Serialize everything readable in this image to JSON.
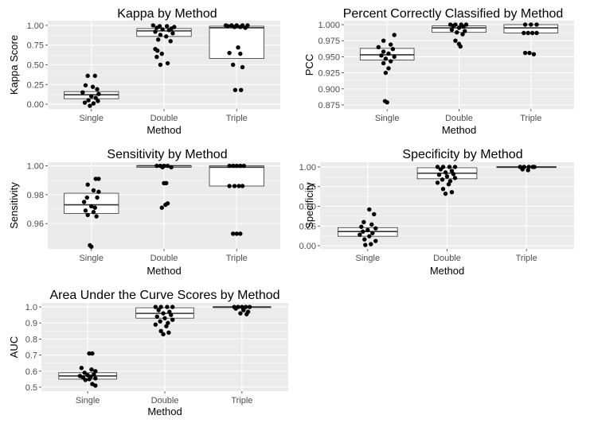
{
  "figure": {
    "background": "#ffffff",
    "panel_background": "#ebebeb",
    "grid_color": "#ffffff",
    "box_fill": "#ffffff",
    "box_stroke": "#333333",
    "point_color": "#000000"
  },
  "chart_data": [
    {
      "type": "box",
      "title": "Kappa by Method",
      "xlabel": "Method",
      "ylabel": "Kappa Score",
      "categories": [
        "Single",
        "Double",
        "Triple"
      ],
      "ylim": [
        -0.06,
        1.06
      ],
      "yticks": [
        0.0,
        0.25,
        0.5,
        0.75,
        1.0
      ],
      "ytick_labels": [
        "0.00",
        "0.25",
        "0.50",
        "0.75",
        "1.00"
      ],
      "grid": true,
      "boxes": [
        {
          "category": "Single",
          "q1": 0.07,
          "median": 0.12,
          "q3": 0.16
        },
        {
          "category": "Double",
          "q1": 0.86,
          "median": 0.93,
          "q3": 0.96
        },
        {
          "category": "Triple",
          "q1": 0.58,
          "median": 0.97,
          "q3": 0.99
        }
      ],
      "points": [
        [
          -0.05,
          0.36
        ],
        [
          0.05,
          0.36
        ],
        [
          -0.08,
          0.24
        ],
        [
          0.02,
          0.22
        ],
        [
          0.08,
          0.19
        ],
        [
          -0.12,
          0.15
        ],
        [
          0.1,
          0.13
        ],
        [
          0.0,
          0.1
        ],
        [
          0.06,
          0.08
        ],
        [
          -0.04,
          0.05
        ],
        [
          0.09,
          0.04
        ],
        [
          -0.09,
          0.02
        ],
        [
          0.03,
          0.01
        ],
        [
          -0.02,
          -0.02
        ],
        [
          -0.15,
          1.0
        ],
        [
          -0.06,
          0.99
        ],
        [
          0.04,
          0.99
        ],
        [
          0.14,
          0.98
        ],
        [
          -0.1,
          0.97
        ],
        [
          0.1,
          0.96
        ],
        [
          -0.02,
          0.95
        ],
        [
          0.07,
          0.94
        ],
        [
          -0.12,
          0.92
        ],
        [
          0.12,
          0.9
        ],
        [
          -0.05,
          0.88
        ],
        [
          0.03,
          0.86
        ],
        [
          -0.08,
          0.82
        ],
        [
          0.09,
          0.8
        ],
        [
          -0.12,
          0.7
        ],
        [
          -0.09,
          0.68
        ],
        [
          -0.03,
          0.64
        ],
        [
          -0.1,
          0.6
        ],
        [
          0.05,
          0.52
        ],
        [
          -0.05,
          0.5
        ],
        [
          -0.15,
          1.0
        ],
        [
          -0.07,
          1.0
        ],
        [
          0.0,
          1.0
        ],
        [
          0.08,
          1.0
        ],
        [
          0.15,
          1.0
        ],
        [
          -0.12,
          0.99
        ],
        [
          -0.03,
          0.98
        ],
        [
          0.05,
          0.98
        ],
        [
          0.12,
          0.97
        ],
        [
          0.02,
          0.72
        ],
        [
          -0.1,
          0.65
        ],
        [
          0.05,
          0.64
        ],
        [
          -0.05,
          0.5
        ],
        [
          0.08,
          0.47
        ],
        [
          -0.02,
          0.18
        ],
        [
          0.06,
          0.18
        ]
      ]
    },
    {
      "type": "box",
      "title": "Percent Correctly Classified by Method",
      "xlabel": "Method",
      "ylabel": "PCC",
      "categories": [
        "Single",
        "Double",
        "Triple"
      ],
      "ylim": [
        0.8688,
        1.0062
      ],
      "yticks": [
        0.875,
        0.9,
        0.925,
        0.95,
        0.975,
        1.0
      ],
      "ytick_labels": [
        "0.875",
        "0.900",
        "0.925",
        "0.950",
        "0.975",
        "1.000"
      ],
      "grid": true,
      "boxes": [
        {
          "category": "Single",
          "q1": 0.945,
          "median": 0.953,
          "q3": 0.963
        },
        {
          "category": "Double",
          "q1": 0.988,
          "median": 0.995,
          "q3": 0.998
        },
        {
          "category": "Triple",
          "q1": 0.987,
          "median": 0.995,
          "q3": 1.0
        }
      ],
      "points": [
        [
          0.1,
          0.984
        ],
        [
          -0.05,
          0.975
        ],
        [
          0.05,
          0.969
        ],
        [
          -0.12,
          0.965
        ],
        [
          0.08,
          0.962
        ],
        [
          -0.05,
          0.958
        ],
        [
          0.02,
          0.955
        ],
        [
          -0.08,
          0.952
        ],
        [
          0.1,
          0.95
        ],
        [
          -0.02,
          0.947
        ],
        [
          0.05,
          0.943
        ],
        [
          -0.05,
          0.94
        ],
        [
          0.02,
          0.932
        ],
        [
          -0.02,
          0.925
        ],
        [
          -0.03,
          0.881
        ],
        [
          0.0,
          0.879
        ],
        [
          -0.12,
          1.0
        ],
        [
          -0.05,
          1.0
        ],
        [
          0.03,
          1.0
        ],
        [
          0.1,
          1.0
        ],
        [
          -0.08,
          0.998
        ],
        [
          0.06,
          0.997
        ],
        [
          0.0,
          0.995
        ],
        [
          -0.1,
          0.992
        ],
        [
          0.08,
          0.99
        ],
        [
          -0.03,
          0.988
        ],
        [
          0.05,
          0.985
        ],
        [
          -0.05,
          0.975
        ],
        [
          0.0,
          0.97
        ],
        [
          0.02,
          0.966
        ],
        [
          -0.08,
          1.0
        ],
        [
          0.0,
          1.0
        ],
        [
          0.08,
          1.0
        ],
        [
          -0.1,
          0.987
        ],
        [
          -0.04,
          0.987
        ],
        [
          0.02,
          0.987
        ],
        [
          0.08,
          0.987
        ],
        [
          -0.08,
          0.956
        ],
        [
          -0.02,
          0.956
        ],
        [
          0.04,
          0.954
        ]
      ]
    },
    {
      "type": "box",
      "title": "Sensitivity by Method",
      "xlabel": "Method",
      "ylabel": "Sensitivity",
      "categories": [
        "Single",
        "Double",
        "Triple"
      ],
      "ylim": [
        0.9425,
        1.0025
      ],
      "yticks": [
        0.96,
        0.98,
        1.0
      ],
      "ytick_labels": [
        "0.96",
        "0.98",
        "1.00"
      ],
      "grid": true,
      "boxes": [
        {
          "category": "Single",
          "q1": 0.967,
          "median": 0.973,
          "q3": 0.981
        },
        {
          "category": "Double",
          "q1": 0.999,
          "median": 1.0,
          "q3": 1.0
        },
        {
          "category": "Triple",
          "q1": 0.986,
          "median": 0.999,
          "q3": 1.0
        }
      ],
      "points": [
        [
          0.06,
          0.991
        ],
        [
          0.1,
          0.991
        ],
        [
          -0.05,
          0.987
        ],
        [
          0.03,
          0.983
        ],
        [
          0.1,
          0.982
        ],
        [
          0.08,
          0.978
        ],
        [
          -0.06,
          0.978
        ],
        [
          -0.1,
          0.975
        ],
        [
          0.0,
          0.972
        ],
        [
          0.05,
          0.971
        ],
        [
          -0.08,
          0.969
        ],
        [
          0.03,
          0.968
        ],
        [
          -0.05,
          0.966
        ],
        [
          0.07,
          0.965
        ],
        [
          -0.02,
          0.945
        ],
        [
          0.0,
          0.944
        ],
        [
          -0.1,
          1.0
        ],
        [
          -0.05,
          1.0
        ],
        [
          0.0,
          1.0
        ],
        [
          0.05,
          1.0
        ],
        [
          0.1,
          0.999
        ],
        [
          -0.02,
          0.999
        ],
        [
          0.03,
          0.988
        ],
        [
          0.0,
          0.988
        ],
        [
          0.05,
          0.974
        ],
        [
          0.02,
          0.973
        ],
        [
          -0.03,
          0.971
        ],
        [
          -0.1,
          1.0
        ],
        [
          -0.05,
          1.0
        ],
        [
          0.0,
          1.0
        ],
        [
          0.05,
          1.0
        ],
        [
          0.1,
          1.0
        ],
        [
          -0.1,
          0.986
        ],
        [
          -0.03,
          0.986
        ],
        [
          0.03,
          0.986
        ],
        [
          0.08,
          0.986
        ],
        [
          -0.05,
          0.953
        ],
        [
          0.0,
          0.953
        ],
        [
          0.05,
          0.953
        ]
      ]
    },
    {
      "type": "box",
      "title": "Specificity by Method",
      "xlabel": "Method",
      "ylabel": "Specificity",
      "categories": [
        "Single",
        "Double",
        "Triple"
      ],
      "ylim": [
        -0.04,
        1.06
      ],
      "yticks": [
        0.0,
        0.25,
        0.5,
        0.75,
        1.0
      ],
      "ytick_labels": [
        "0.00",
        "0.25",
        "0.50",
        "0.75",
        "1.00"
      ],
      "grid": true,
      "boxes": [
        {
          "category": "Single",
          "q1": 0.12,
          "median": 0.18,
          "q3": 0.23
        },
        {
          "category": "Double",
          "q1": 0.85,
          "median": 0.92,
          "q3": 0.99
        },
        {
          "category": "Triple",
          "q1": 1.0,
          "median": 1.0,
          "q3": 1.0
        }
      ],
      "points": [
        [
          0.02,
          0.46
        ],
        [
          0.08,
          0.4
        ],
        [
          -0.05,
          0.3
        ],
        [
          0.05,
          0.27
        ],
        [
          -0.08,
          0.24
        ],
        [
          0.1,
          0.22
        ],
        [
          0.0,
          0.2
        ],
        [
          -0.06,
          0.18
        ],
        [
          0.06,
          0.16
        ],
        [
          -0.1,
          0.14
        ],
        [
          0.02,
          0.12
        ],
        [
          -0.04,
          0.08
        ],
        [
          0.1,
          0.06
        ],
        [
          0.04,
          0.02
        ],
        [
          -0.03,
          0.01
        ],
        [
          -0.12,
          1.0
        ],
        [
          -0.05,
          1.0
        ],
        [
          0.03,
          1.0
        ],
        [
          0.1,
          1.0
        ],
        [
          -0.08,
          0.97
        ],
        [
          0.06,
          0.95
        ],
        [
          -0.02,
          0.93
        ],
        [
          0.08,
          0.91
        ],
        [
          -0.1,
          0.9
        ],
        [
          0.0,
          0.88
        ],
        [
          0.1,
          0.86
        ],
        [
          -0.06,
          0.84
        ],
        [
          0.04,
          0.82
        ],
        [
          -0.12,
          0.8
        ],
        [
          0.02,
          0.78
        ],
        [
          -0.05,
          0.72
        ],
        [
          0.06,
          0.68
        ],
        [
          -0.02,
          0.66
        ],
        [
          -0.08,
          1.0
        ],
        [
          -0.03,
          1.0
        ],
        [
          0.03,
          1.0
        ],
        [
          0.08,
          1.0
        ],
        [
          0.1,
          1.0
        ],
        [
          -0.05,
          0.97
        ],
        [
          0.02,
          0.96
        ]
      ]
    },
    {
      "type": "box",
      "title": "Area Under the Curve Scores by Method",
      "xlabel": "Method",
      "ylabel": "AUC",
      "categories": [
        "Single",
        "Double",
        "Triple"
      ],
      "ylim": [
        0.475,
        1.025
      ],
      "yticks": [
        0.5,
        0.6,
        0.7,
        0.8,
        0.9,
        1.0
      ],
      "ytick_labels": [
        "0.5",
        "0.6",
        "0.7",
        "0.8",
        "0.9",
        "1.0"
      ],
      "grid": true,
      "boxes": [
        {
          "category": "Single",
          "q1": 0.55,
          "median": 0.57,
          "q3": 0.59
        },
        {
          "category": "Double",
          "q1": 0.93,
          "median": 0.96,
          "q3": 0.995
        },
        {
          "category": "Triple",
          "q1": 0.996,
          "median": 1.0,
          "q3": 1.0
        }
      ],
      "points": [
        [
          0.02,
          0.71
        ],
        [
          0.06,
          0.71
        ],
        [
          -0.08,
          0.62
        ],
        [
          0.05,
          0.61
        ],
        [
          0.1,
          0.6
        ],
        [
          -0.04,
          0.59
        ],
        [
          0.08,
          0.58
        ],
        [
          0.0,
          0.575
        ],
        [
          -0.1,
          0.57
        ],
        [
          0.04,
          0.565
        ],
        [
          -0.06,
          0.56
        ],
        [
          0.1,
          0.555
        ],
        [
          0.02,
          0.55
        ],
        [
          -0.03,
          0.545
        ],
        [
          0.06,
          0.52
        ],
        [
          0.1,
          0.51
        ],
        [
          -0.12,
          1.0
        ],
        [
          -0.05,
          1.0
        ],
        [
          0.03,
          1.0
        ],
        [
          0.1,
          1.0
        ],
        [
          -0.08,
          0.98
        ],
        [
          0.06,
          0.97
        ],
        [
          -0.02,
          0.96
        ],
        [
          0.08,
          0.95
        ],
        [
          -0.1,
          0.94
        ],
        [
          0.0,
          0.93
        ],
        [
          0.1,
          0.92
        ],
        [
          -0.06,
          0.91
        ],
        [
          0.04,
          0.9
        ],
        [
          -0.12,
          0.89
        ],
        [
          0.02,
          0.88
        ],
        [
          -0.05,
          0.85
        ],
        [
          0.05,
          0.84
        ],
        [
          -0.02,
          0.83
        ],
        [
          -0.1,
          1.0
        ],
        [
          -0.05,
          1.0
        ],
        [
          0.0,
          1.0
        ],
        [
          0.05,
          1.0
        ],
        [
          0.1,
          1.0
        ],
        [
          -0.08,
          0.99
        ],
        [
          0.02,
          0.98
        ],
        [
          0.08,
          0.97
        ],
        [
          -0.02,
          0.96
        ],
        [
          0.06,
          0.955
        ]
      ]
    }
  ]
}
